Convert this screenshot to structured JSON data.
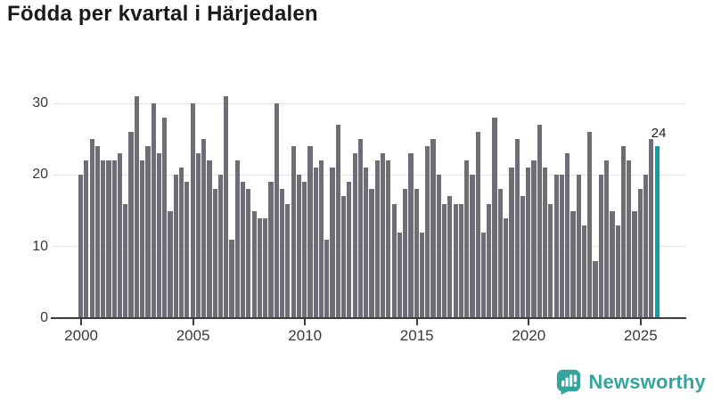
{
  "title": "Födda per kvartal i Härjedalen",
  "footer": {
    "brand": "Newsworthy"
  },
  "colors": {
    "bar": "#6e6e76",
    "highlight": "#0aa2a0",
    "logo_teal": "#35a49c",
    "axis": "#3d3d3d",
    "grid": "#e4e4e4",
    "title_text": "#1a1a1a"
  },
  "chart_data": {
    "type": "bar",
    "title": "Födda per kvartal i Härjedalen",
    "xlabel": "",
    "ylabel": "",
    "ylim": [
      0,
      31
    ],
    "yticks": [
      0,
      10,
      20,
      30
    ],
    "xtick_labels": [
      "2000",
      "2005",
      "2010",
      "2015",
      "2020",
      "2025"
    ],
    "grid": true,
    "legend": "none",
    "x_unit": "quarter",
    "years": [
      {
        "year": 2000,
        "quarters": [
          20,
          22,
          25,
          24
        ]
      },
      {
        "year": 2001,
        "quarters": [
          22,
          22,
          22,
          23
        ]
      },
      {
        "year": 2002,
        "quarters": [
          16,
          26,
          31,
          22
        ]
      },
      {
        "year": 2003,
        "quarters": [
          24,
          30,
          23,
          28
        ]
      },
      {
        "year": 2004,
        "quarters": [
          15,
          20,
          21,
          19
        ]
      },
      {
        "year": 2005,
        "quarters": [
          30,
          23,
          25,
          22
        ]
      },
      {
        "year": 2006,
        "quarters": [
          18,
          20,
          31,
          11
        ]
      },
      {
        "year": 2007,
        "quarters": [
          22,
          19,
          18,
          15
        ]
      },
      {
        "year": 2008,
        "quarters": [
          14,
          14,
          19,
          30
        ]
      },
      {
        "year": 2009,
        "quarters": [
          18,
          16,
          24,
          20
        ]
      },
      {
        "year": 2010,
        "quarters": [
          19,
          24,
          21,
          22
        ]
      },
      {
        "year": 2011,
        "quarters": [
          11,
          21,
          27,
          17
        ]
      },
      {
        "year": 2012,
        "quarters": [
          19,
          23,
          25,
          21
        ]
      },
      {
        "year": 2013,
        "quarters": [
          18,
          22,
          23,
          22
        ]
      },
      {
        "year": 2014,
        "quarters": [
          16,
          12,
          18,
          23
        ]
      },
      {
        "year": 2015,
        "quarters": [
          18,
          12,
          24,
          25
        ]
      },
      {
        "year": 2016,
        "quarters": [
          20,
          16,
          17,
          16
        ]
      },
      {
        "year": 2017,
        "quarters": [
          16,
          22,
          20,
          26
        ]
      },
      {
        "year": 2018,
        "quarters": [
          12,
          16,
          28,
          18
        ]
      },
      {
        "year": 2019,
        "quarters": [
          14,
          21,
          25,
          17
        ]
      },
      {
        "year": 2020,
        "quarters": [
          21,
          22,
          27,
          21
        ]
      },
      {
        "year": 2021,
        "quarters": [
          16,
          20,
          20,
          23
        ]
      },
      {
        "year": 2022,
        "quarters": [
          15,
          20,
          13,
          26
        ]
      },
      {
        "year": 2023,
        "quarters": [
          8,
          20,
          22,
          15
        ]
      },
      {
        "year": 2024,
        "quarters": [
          13,
          24,
          22,
          15
        ]
      },
      {
        "year": 2025,
        "quarters": [
          18,
          20,
          25,
          24
        ]
      }
    ],
    "highlight": {
      "position": "last",
      "quarter": "2025 Q4",
      "value": 24,
      "label": "24"
    }
  }
}
